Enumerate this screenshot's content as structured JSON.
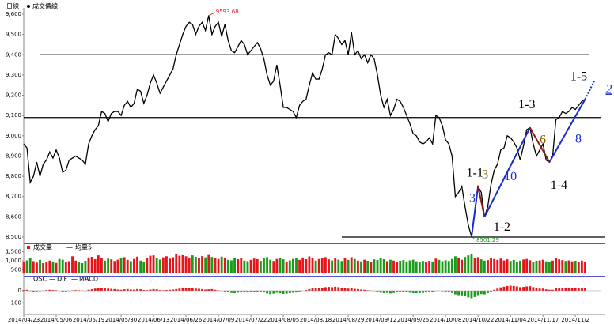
{
  "chart_data": [
    {
      "type": "line",
      "title": "日線",
      "series": [
        {
          "name": "成交價線",
          "color": "#000000",
          "values": [
            8960,
            8940,
            8770,
            8800,
            8870,
            8800,
            8860,
            8880,
            8920,
            8890,
            8930,
            8890,
            8820,
            8830,
            8880,
            8890,
            8900,
            8890,
            8880,
            8860,
            8960,
            9000,
            9030,
            9050,
            9120,
            9110,
            9070,
            9110,
            9120,
            9120,
            9100,
            9150,
            9170,
            9140,
            9160,
            9230,
            9220,
            9160,
            9200,
            9260,
            9300,
            9260,
            9210,
            9240,
            9270,
            9300,
            9330,
            9400,
            9450,
            9500,
            9540,
            9560,
            9550,
            9500,
            9540,
            9560,
            9520,
            9593.68,
            9500,
            9540,
            9560,
            9490,
            9550,
            9470,
            9420,
            9410,
            9440,
            9470,
            9450,
            9400,
            9420,
            9440,
            9460,
            9430,
            9380,
            9300,
            9250,
            9270,
            9350,
            9250,
            9140,
            9140,
            9130,
            9120,
            9090,
            9150,
            9170,
            9180,
            9250,
            9310,
            9280,
            9280,
            9330,
            9400,
            9410,
            9400,
            9500,
            9480,
            9450,
            9470,
            9400,
            9510,
            9400,
            9420,
            9380,
            9400,
            9360,
            9400,
            9380,
            9300,
            9200,
            9140,
            9180,
            9100,
            9130,
            9180,
            9170,
            9140,
            9100,
            9060,
            9010,
            9000,
            8970,
            8960,
            8970,
            8990,
            8960,
            9100,
            9090,
            9050,
            8980,
            8960,
            8900,
            8700,
            8720,
            8750,
            8650,
            8560,
            8501.29,
            8620,
            8750,
            8720,
            8600,
            8650,
            8760,
            8830,
            8860,
            8930,
            8940,
            9000,
            8990,
            8970,
            8940,
            8880,
            8950,
            9030,
            9040,
            8960,
            8900,
            8930,
            8960,
            8880,
            8870,
            8900,
            9080,
            9090,
            9120,
            9110,
            9120,
            9140,
            9130,
            9150,
            9170,
            9180
          ]
        }
      ],
      "xlim": [
        0,
        178
      ],
      "xticks": [
        {
          "value": 0,
          "label": "2014/04/23"
        },
        {
          "value": 10,
          "label": "2014/05/06"
        },
        {
          "value": 20,
          "label": "2014/05/19"
        },
        {
          "value": 30,
          "label": "2014/05/30"
        },
        {
          "value": 40,
          "label": "2014/06/13"
        },
        {
          "value": 50,
          "label": "2014/06/26"
        },
        {
          "value": 60,
          "label": "2014/07/09"
        },
        {
          "value": 70,
          "label": "2014/07/22"
        },
        {
          "value": 80,
          "label": "2014/08/05"
        },
        {
          "value": 90,
          "label": "2014/08/18"
        },
        {
          "value": 100,
          "label": "2014/08/29"
        },
        {
          "value": 110,
          "label": "2014/09/12"
        },
        {
          "value": 120,
          "label": "2014/09/25"
        },
        {
          "value": 130,
          "label": "2014/10/08"
        },
        {
          "value": 140,
          "label": "2014/10/22"
        },
        {
          "value": 150,
          "label": "2014/11/04"
        },
        {
          "value": 160,
          "label": "2014/11/17"
        },
        {
          "value": 170,
          "label": "2014/11/2"
        }
      ],
      "ylim": [
        8500,
        9600
      ],
      "yticks": [
        {
          "value": 8500,
          "label": "8,500"
        },
        {
          "value": 8600,
          "label": "8,600"
        },
        {
          "value": 8700,
          "label": "8,700"
        },
        {
          "value": 8800,
          "label": "8,800"
        },
        {
          "value": 8900,
          "label": "8,900"
        },
        {
          "value": 9000,
          "label": "9,000"
        },
        {
          "value": 9100,
          "label": "9,100"
        },
        {
          "value": 9200,
          "label": "9,200"
        },
        {
          "value": 9300,
          "label": "9,300"
        },
        {
          "value": 9400,
          "label": "9,400"
        },
        {
          "value": 9500,
          "label": "9,500"
        },
        {
          "value": 9600,
          "label": "9,600"
        }
      ],
      "max_label": "9593.68",
      "min_label": "8501.29",
      "hlines": [
        9400,
        9090,
        8500
      ],
      "annotations": [
        "1-1",
        "1-2",
        "1-3",
        "1-4",
        "1-5",
        "2",
        "3",
        "3",
        "6",
        "8",
        "10"
      ]
    },
    {
      "type": "bar",
      "legend": [
        "成交量",
        "均量5"
      ],
      "up_color": "#e8141b",
      "down_color": "#1a9c1a",
      "values": [
        950,
        1020,
        1150,
        980,
        900,
        1050,
        870,
        940,
        1010,
        960,
        880,
        1100,
        1060,
        920,
        980,
        1250,
        1010,
        930,
        870,
        1000,
        1180,
        1220,
        1090,
        1300,
        1150,
        1010,
        1120,
        1080,
        990,
        1060,
        1140,
        1200,
        1050,
        980,
        1100,
        1230,
        1010,
        960,
        1150,
        1280,
        1300,
        1150,
        1070,
        1190,
        1250,
        1120,
        1200,
        1350,
        1280,
        1310,
        1250,
        1180,
        1300,
        1220,
        1140,
        1260,
        1190,
        1320,
        1210,
        1150,
        1100,
        1230,
        1180,
        1050,
        1020,
        1140,
        1090,
        1160,
        1010,
        980,
        1050,
        1120,
        1090,
        1000,
        1150,
        1200,
        1060,
        990,
        1100,
        1170,
        1080,
        950,
        1020,
        1100,
        1130,
        1050,
        1180,
        1090,
        1240,
        1160,
        1010,
        1100,
        1150,
        1200,
        1080,
        1020,
        1170,
        1060,
        990,
        1130,
        1050,
        1200,
        1100,
        1010,
        970,
        1060,
        1000,
        950,
        1080,
        1040,
        1150,
        1090,
        980,
        1060,
        1010,
        930,
        1000,
        1040,
        960,
        1020,
        1060,
        970,
        930,
        990,
        920,
        1000,
        960,
        1120,
        1050,
        980,
        1030,
        990,
        1100,
        1250,
        1180,
        1060,
        1210,
        1300,
        1350,
        1150,
        1200,
        1080,
        1010,
        1040,
        1160,
        1100,
        1050,
        1120,
        1020,
        1080,
        990,
        1050,
        960,
        1010,
        1070,
        1100,
        1030,
        940,
        1000,
        1020,
        1060,
        970,
        950,
        1010,
        1130,
        1080,
        1040,
        990,
        1020,
        970,
        1000,
        950,
        1010,
        960
      ],
      "ylim": [
        300,
        1700
      ],
      "yticks": [
        500,
        {
          "value": 1000,
          "label": "1,000"
        },
        {
          "value": 1500,
          "label": "1,500"
        }
      ]
    },
    {
      "type": "bar",
      "legend": [
        "OSC",
        "DIF",
        "MACD"
      ],
      "up_color": "#e8141b",
      "down_color": "#1a9c1a",
      "values": [
        5,
        8,
        -3,
        -10,
        -6,
        -4,
        2,
        5,
        8,
        6,
        4,
        0,
        -8,
        -6,
        -2,
        3,
        5,
        4,
        2,
        -2,
        8,
        12,
        18,
        20,
        24,
        22,
        18,
        16,
        14,
        10,
        8,
        12,
        14,
        10,
        9,
        14,
        12,
        6,
        5,
        10,
        14,
        12,
        6,
        4,
        6,
        8,
        10,
        14,
        18,
        22,
        24,
        26,
        22,
        18,
        16,
        14,
        10,
        12,
        14,
        8,
        4,
        -2,
        -6,
        -12,
        -18,
        -20,
        -16,
        -12,
        -10,
        -14,
        -12,
        -8,
        -6,
        -8,
        -14,
        -22,
        -28,
        -24,
        -16,
        -20,
        -26,
        -24,
        -20,
        -16,
        -14,
        -6,
        0,
        6,
        14,
        20,
        22,
        24,
        26,
        30,
        32,
        30,
        34,
        30,
        26,
        24,
        18,
        22,
        16,
        14,
        10,
        8,
        4,
        2,
        -2,
        -8,
        -16,
        -20,
        -18,
        -22,
        -18,
        -12,
        -10,
        -10,
        -12,
        -16,
        -20,
        -20,
        -20,
        -18,
        -14,
        -10,
        -10,
        -2,
        0,
        -4,
        -8,
        -12,
        -18,
        -30,
        -36,
        -38,
        -46,
        -55,
        -62,
        -52,
        -36,
        -28,
        -30,
        -20,
        -6,
        8,
        18,
        28,
        34,
        40,
        42,
        40,
        36,
        30,
        32,
        36,
        38,
        30,
        22,
        18,
        18,
        12,
        8,
        8,
        20,
        24,
        26,
        24,
        22,
        22,
        20,
        22,
        24,
        24
      ],
      "ylim": [
        -190,
        85
      ],
      "yticks": [
        0,
        -100
      ]
    }
  ]
}
